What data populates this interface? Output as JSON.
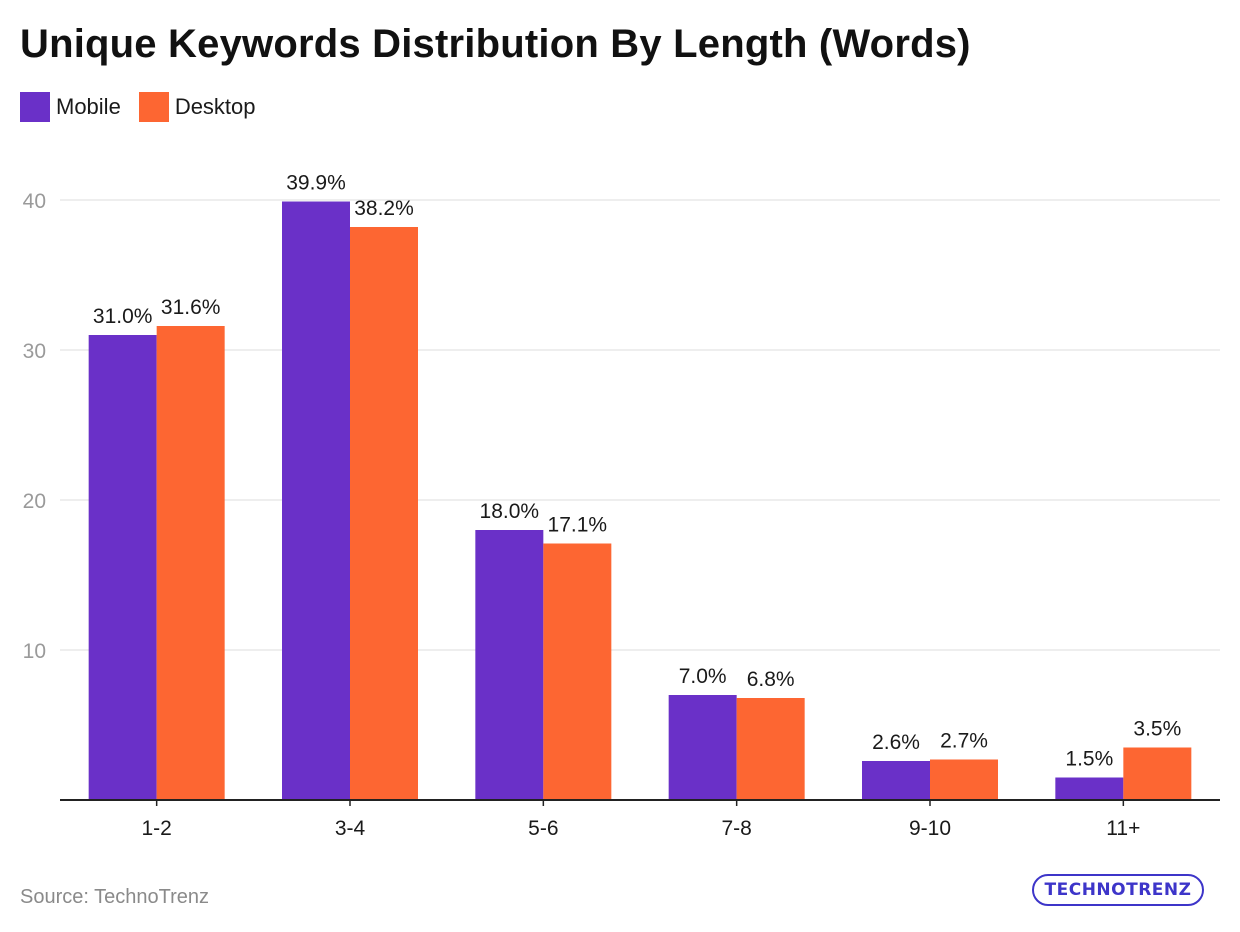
{
  "title": "Unique Keywords Distribution By Length (Words)",
  "source": "Source: TechnoTrenz",
  "logo": "TECHNOTRENZ",
  "colors": {
    "mobile": "#6a30c8",
    "desktop": "#fd6632",
    "grid": "#e3e3e3",
    "axis": "#222222",
    "tick": "#9a9a9a"
  },
  "chart_data": {
    "type": "bar",
    "title": "Unique Keywords Distribution By Length (Words)",
    "categories": [
      "1-2",
      "3-4",
      "5-6",
      "7-8",
      "9-10",
      "11+"
    ],
    "series": [
      {
        "name": "Mobile",
        "values": [
          31.0,
          39.9,
          18.0,
          7.0,
          2.6,
          1.5
        ],
        "labels": [
          "31.0%",
          "39.9%",
          "18.0%",
          "7.0%",
          "2.6%",
          "1.5%"
        ]
      },
      {
        "name": "Desktop",
        "values": [
          31.6,
          38.2,
          17.1,
          6.8,
          2.7,
          3.5
        ],
        "labels": [
          "31.6%",
          "38.2%",
          "17.1%",
          "6.8%",
          "2.7%",
          "3.5%"
        ]
      }
    ],
    "yticks": [
      10,
      20,
      30,
      40
    ],
    "ylim": [
      0,
      40
    ],
    "grid": true,
    "legend": "top-left"
  }
}
